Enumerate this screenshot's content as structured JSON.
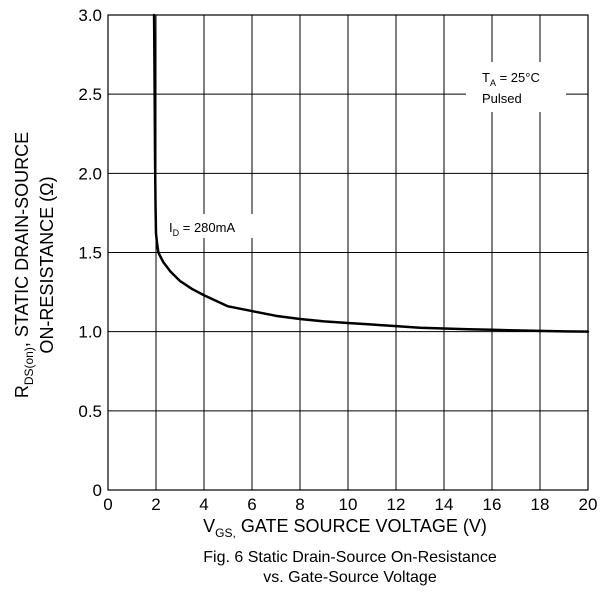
{
  "chart_data": {
    "type": "line",
    "x_ticks": [
      "0",
      "2",
      "4",
      "6",
      "8",
      "10",
      "12",
      "14",
      "16",
      "18",
      "20"
    ],
    "y_ticks": [
      "0",
      "0.5",
      "1.0",
      "1.5",
      "2.0",
      "2.5",
      "3.0"
    ],
    "xlim": [
      0,
      20
    ],
    "ylim": [
      0,
      3.0
    ],
    "grid": true,
    "xlabel": {
      "main": "V",
      "sub": "GS,",
      "rest": " GATE SOURCE VOLTAGE (V)"
    },
    "ylabel": {
      "line1_main": "R",
      "line1_sub": "DS(on)",
      "line1_rest": ", STATIC DRAIN-SOURCE",
      "line2": "ON-RESISTANCE (Ω)"
    },
    "annotations": {
      "temp_main": "T",
      "temp_sub": "A",
      "temp_rest": " = 25°C",
      "pulsed": "Pulsed",
      "id_main": "I",
      "id_sub": "D",
      "id_rest": " = 280mA"
    },
    "caption": [
      "Fig. 6  Static Drain-Source On-Resistance",
      "vs. Gate-Source Voltage"
    ],
    "series": [
      {
        "x": [
          1.92,
          1.94,
          1.96,
          1.98,
          2.0,
          2.05,
          2.1,
          2.3,
          2.6,
          3.0,
          3.5,
          4.0,
          5.0,
          6.0,
          7.0,
          8.0,
          9.0,
          10.0,
          11.0,
          12.0,
          13.0,
          14.0,
          15.0,
          16.0,
          17.0,
          18.0,
          19.0,
          20.0
        ],
        "y": [
          3.0,
          2.6,
          2.1,
          1.8,
          1.62,
          1.55,
          1.5,
          1.44,
          1.38,
          1.32,
          1.27,
          1.23,
          1.16,
          1.13,
          1.1,
          1.08,
          1.065,
          1.055,
          1.045,
          1.035,
          1.025,
          1.02,
          1.015,
          1.012,
          1.008,
          1.005,
          1.002,
          1.0
        ]
      }
    ]
  }
}
